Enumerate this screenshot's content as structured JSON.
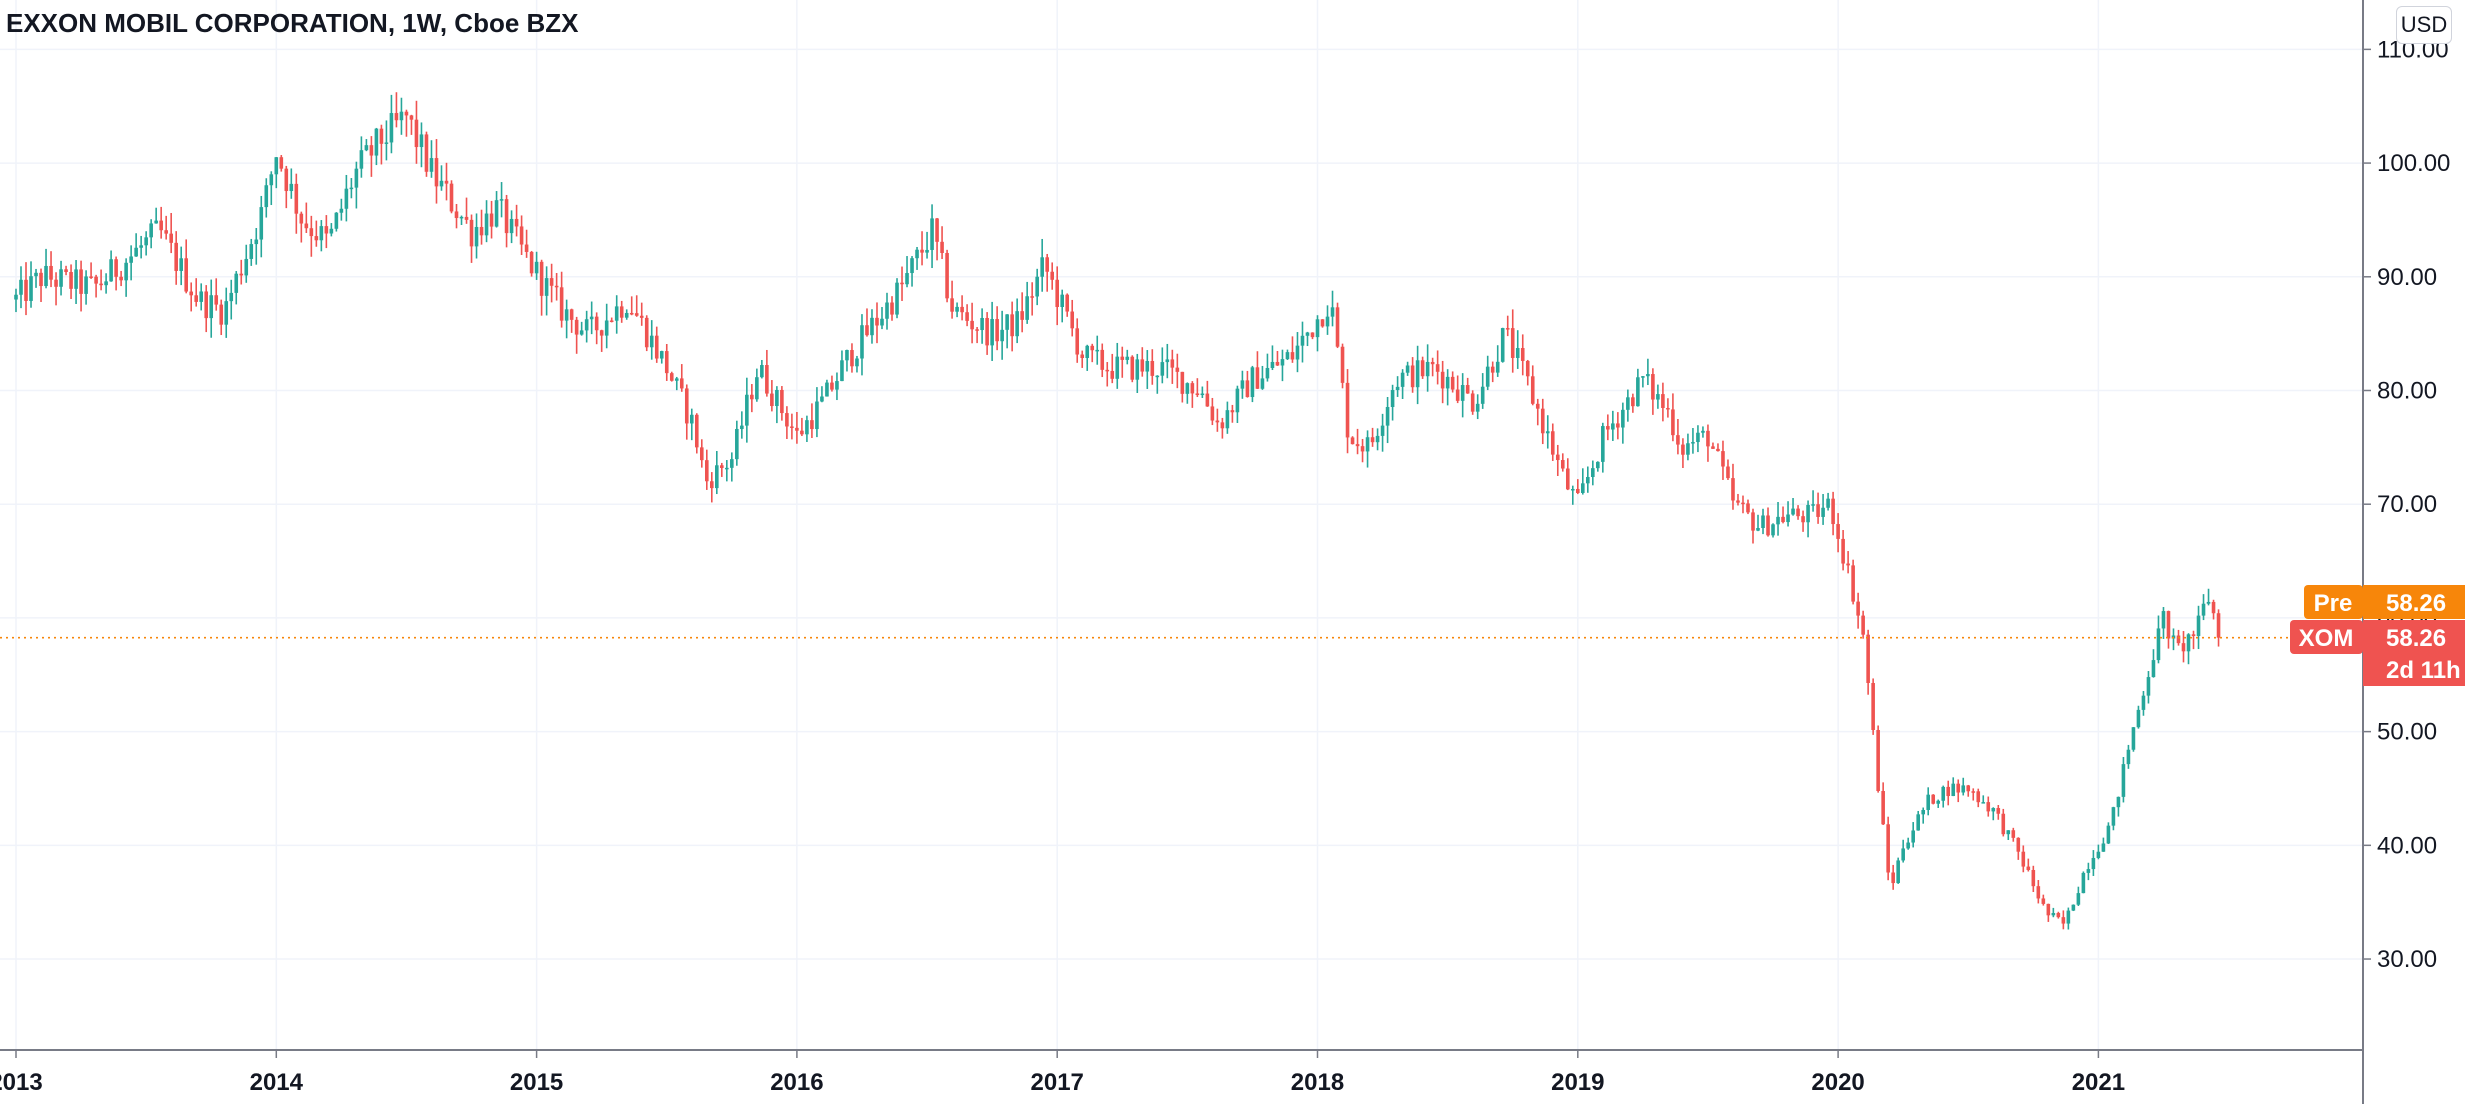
{
  "header": {
    "title": "EXXON MOBIL CORPORATION, 1W, Cboe BZX",
    "currency_button": "USD"
  },
  "price_badges": [
    {
      "label": "Pre",
      "value": "58.26",
      "color": "#f7860a"
    },
    {
      "label": "XOM",
      "value": "58.26",
      "extra": "2d 11h",
      "color": "#ef5350"
    }
  ],
  "colors": {
    "up": "#26a69a",
    "down": "#ef5350",
    "grid": "#f0f3fa",
    "axis": "#787b86",
    "price_line": "#f7860a"
  },
  "chart_data": {
    "type": "candlestick",
    "title": "EXXON MOBIL CORPORATION, 1W, Cboe BZX",
    "symbol": "XOM",
    "interval": "1W",
    "exchange": "Cboe BZX",
    "currency": "USD",
    "last_price": 58.26,
    "premarket_price": 58.26,
    "y_ticks": [
      "30.00",
      "40.00",
      "50.00",
      "60.00",
      "70.00",
      "80.00",
      "90.00",
      "100.00",
      "110.00"
    ],
    "y_range": [
      22,
      111
    ],
    "x_ticks": [
      "2013",
      "2014",
      "2015",
      "2016",
      "2017",
      "2018",
      "2019",
      "2020",
      "2021"
    ],
    "x_range": [
      2013.0,
      2022.0
    ],
    "grid": true,
    "key_points": [
      {
        "t": 2013.0,
        "p": 88
      },
      {
        "t": 2013.1,
        "p": 90
      },
      {
        "t": 2013.3,
        "p": 89
      },
      {
        "t": 2013.55,
        "p": 94
      },
      {
        "t": 2013.7,
        "p": 88
      },
      {
        "t": 2013.8,
        "p": 87
      },
      {
        "t": 2013.95,
        "p": 96
      },
      {
        "t": 2014.0,
        "p": 101
      },
      {
        "t": 2014.1,
        "p": 95
      },
      {
        "t": 2014.2,
        "p": 93
      },
      {
        "t": 2014.3,
        "p": 99
      },
      {
        "t": 2014.4,
        "p": 102
      },
      {
        "t": 2014.5,
        "p": 104
      },
      {
        "t": 2014.6,
        "p": 99
      },
      {
        "t": 2014.75,
        "p": 94
      },
      {
        "t": 2014.85,
        "p": 96
      },
      {
        "t": 2014.95,
        "p": 92
      },
      {
        "t": 2015.1,
        "p": 87
      },
      {
        "t": 2015.2,
        "p": 85
      },
      {
        "t": 2015.35,
        "p": 88
      },
      {
        "t": 2015.5,
        "p": 82
      },
      {
        "t": 2015.6,
        "p": 77
      },
      {
        "t": 2015.65,
        "p": 72
      },
      {
        "t": 2015.75,
        "p": 74
      },
      {
        "t": 2015.85,
        "p": 82
      },
      {
        "t": 2015.95,
        "p": 78
      },
      {
        "t": 2016.0,
        "p": 76
      },
      {
        "t": 2016.1,
        "p": 79
      },
      {
        "t": 2016.2,
        "p": 83
      },
      {
        "t": 2016.4,
        "p": 89
      },
      {
        "t": 2016.52,
        "p": 94
      },
      {
        "t": 2016.6,
        "p": 87
      },
      {
        "t": 2016.75,
        "p": 85
      },
      {
        "t": 2016.85,
        "p": 86
      },
      {
        "t": 2016.95,
        "p": 91
      },
      {
        "t": 2017.1,
        "p": 83
      },
      {
        "t": 2017.2,
        "p": 82
      },
      {
        "t": 2017.4,
        "p": 82
      },
      {
        "t": 2017.55,
        "p": 80
      },
      {
        "t": 2017.62,
        "p": 77
      },
      {
        "t": 2017.75,
        "p": 81
      },
      {
        "t": 2017.9,
        "p": 83
      },
      {
        "t": 2018.05,
        "p": 88
      },
      {
        "t": 2018.12,
        "p": 76
      },
      {
        "t": 2018.2,
        "p": 75
      },
      {
        "t": 2018.3,
        "p": 81
      },
      {
        "t": 2018.45,
        "p": 82
      },
      {
        "t": 2018.6,
        "p": 79
      },
      {
        "t": 2018.72,
        "p": 85
      },
      {
        "t": 2018.8,
        "p": 81
      },
      {
        "t": 2018.95,
        "p": 72
      },
      {
        "t": 2019.0,
        "p": 70
      },
      {
        "t": 2019.1,
        "p": 76
      },
      {
        "t": 2019.25,
        "p": 81
      },
      {
        "t": 2019.35,
        "p": 78
      },
      {
        "t": 2019.4,
        "p": 75
      },
      {
        "t": 2019.5,
        "p": 76
      },
      {
        "t": 2019.6,
        "p": 70
      },
      {
        "t": 2019.7,
        "p": 68
      },
      {
        "t": 2019.8,
        "p": 69
      },
      {
        "t": 2019.9,
        "p": 69
      },
      {
        "t": 2019.97,
        "p": 70
      },
      {
        "t": 2020.05,
        "p": 63
      },
      {
        "t": 2020.1,
        "p": 58
      },
      {
        "t": 2020.15,
        "p": 46
      },
      {
        "t": 2020.2,
        "p": 36
      },
      {
        "t": 2020.25,
        "p": 40
      },
      {
        "t": 2020.35,
        "p": 44
      },
      {
        "t": 2020.42,
        "p": 45
      },
      {
        "t": 2020.5,
        "p": 45
      },
      {
        "t": 2020.6,
        "p": 43
      },
      {
        "t": 2020.7,
        "p": 39
      },
      {
        "t": 2020.8,
        "p": 34
      },
      {
        "t": 2020.87,
        "p": 33
      },
      {
        "t": 2020.95,
        "p": 38
      },
      {
        "t": 2021.05,
        "p": 42
      },
      {
        "t": 2021.12,
        "p": 49
      },
      {
        "t": 2021.2,
        "p": 56
      },
      {
        "t": 2021.25,
        "p": 60
      },
      {
        "t": 2021.3,
        "p": 57
      },
      {
        "t": 2021.38,
        "p": 59
      },
      {
        "t": 2021.42,
        "p": 62
      },
      {
        "t": 2021.47,
        "p": 58.26
      }
    ]
  }
}
